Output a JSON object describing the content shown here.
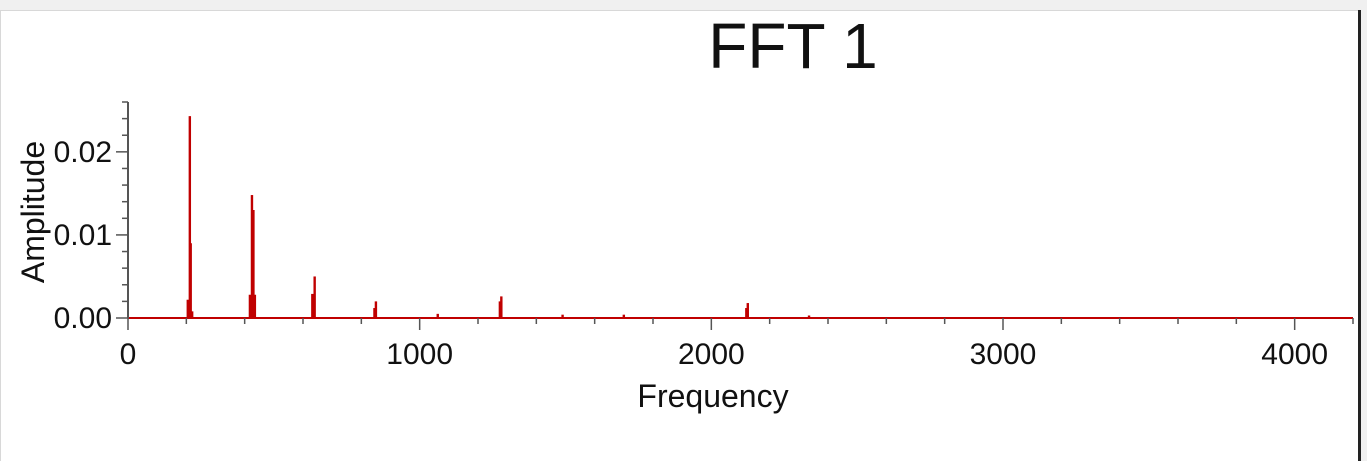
{
  "colors": {
    "series": "#c00000",
    "axis": "#555555",
    "text": "#111111",
    "background": "#ffffff"
  },
  "chart_data": {
    "type": "bar",
    "title": "FFT 1",
    "xlabel": "Frequency",
    "ylabel": "Amplitude",
    "xlim": [
      0,
      4200
    ],
    "ylim": [
      0,
      0.026
    ],
    "x_ticks": [
      {
        "value": 0,
        "label": "0"
      },
      {
        "value": 1000,
        "label": "1000"
      },
      {
        "value": 2000,
        "label": "2000"
      },
      {
        "value": 3000,
        "label": "3000"
      },
      {
        "value": 4000,
        "label": "4000"
      }
    ],
    "y_ticks": [
      {
        "value": 0,
        "label": "0.00"
      },
      {
        "value": 0.01,
        "label": "0.01"
      },
      {
        "value": 0.02,
        "label": "0.02"
      }
    ],
    "grid": false,
    "legend": "none",
    "series": [
      {
        "x": [
          205,
          212,
          215,
          220,
          418,
          425,
          430,
          435,
          632,
          640,
          845,
          850,
          1062,
          1275,
          1280,
          1490,
          1700,
          2120,
          2125,
          2335
        ],
        "values": [
          0.0022,
          0.0243,
          0.009,
          0.0008,
          0.0028,
          0.0148,
          0.013,
          0.0028,
          0.0029,
          0.005,
          0.0012,
          0.002,
          0.0005,
          0.002,
          0.0026,
          0.0004,
          0.0004,
          0.0012,
          0.0018,
          0.0003
        ]
      }
    ]
  }
}
